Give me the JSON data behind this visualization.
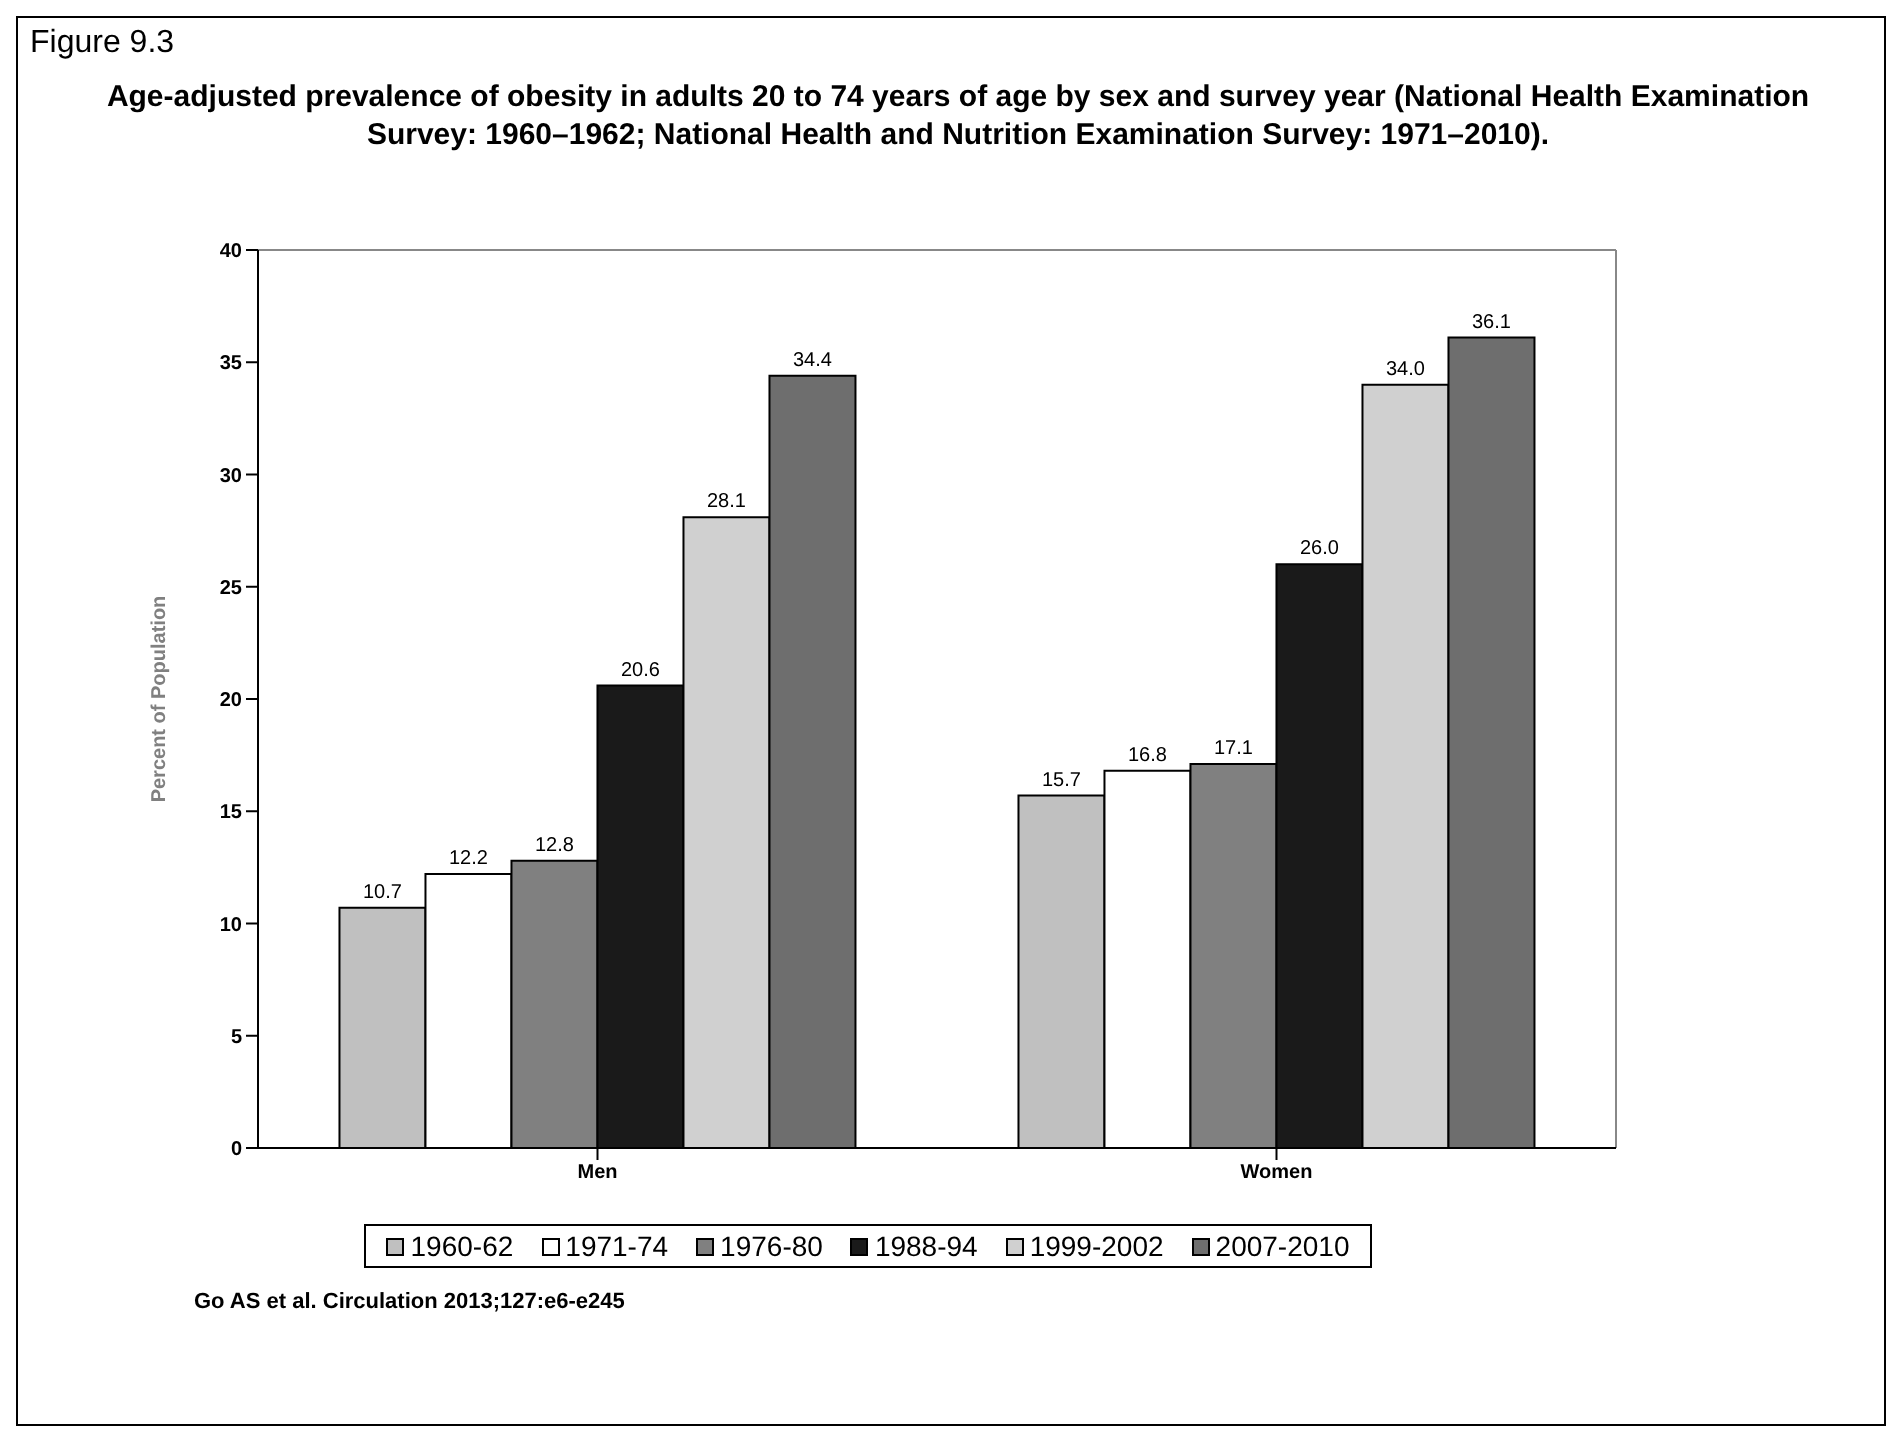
{
  "chart_data": {
    "type": "bar",
    "title": "Age-adjusted prevalence of obesity in adults 20 to 74 years of age by sex and survey year (National Health Examination Survey: 1960–1962; National Health and Nutrition Examination Survey: 1971–2010).",
    "ylabel": "Percent of Population",
    "categories": [
      "Men",
      "Women"
    ],
    "series": [
      {
        "name": "1960-62",
        "color": "#c0c0c0",
        "values": [
          10.7,
          15.7
        ],
        "value_labels": [
          "10.7",
          "15.7"
        ]
      },
      {
        "name": "1971-74",
        "color": "#ffffff",
        "values": [
          12.2,
          16.8
        ],
        "value_labels": [
          "12.2",
          "16.8"
        ]
      },
      {
        "name": "1976-80",
        "color": "#808080",
        "values": [
          12.8,
          17.1
        ],
        "value_labels": [
          "12.8",
          "17.1"
        ]
      },
      {
        "name": "1988-94",
        "color": "#1a1a1a",
        "values": [
          20.6,
          26
        ],
        "value_labels": [
          "20.6",
          "26.0"
        ]
      },
      {
        "name": "1999-2002",
        "color": "#d0d0d0",
        "values": [
          28.1,
          34
        ],
        "value_labels": [
          "28.1",
          "34.0"
        ]
      },
      {
        "name": "2007-2010",
        "color": "#6e6e6e",
        "values": [
          34.4,
          36.1
        ],
        "value_labels": [
          "34.4",
          "36.1"
        ]
      }
    ],
    "ylim": [
      0,
      40
    ],
    "yticks": [
      0,
      5,
      10,
      15,
      20,
      25,
      30,
      35,
      40
    ],
    "grid": false,
    "legend": "bottom",
    "annotations": [
      "Figure 9.3",
      "Go AS et al. Circulation 2013;127:e6-e245"
    ]
  }
}
